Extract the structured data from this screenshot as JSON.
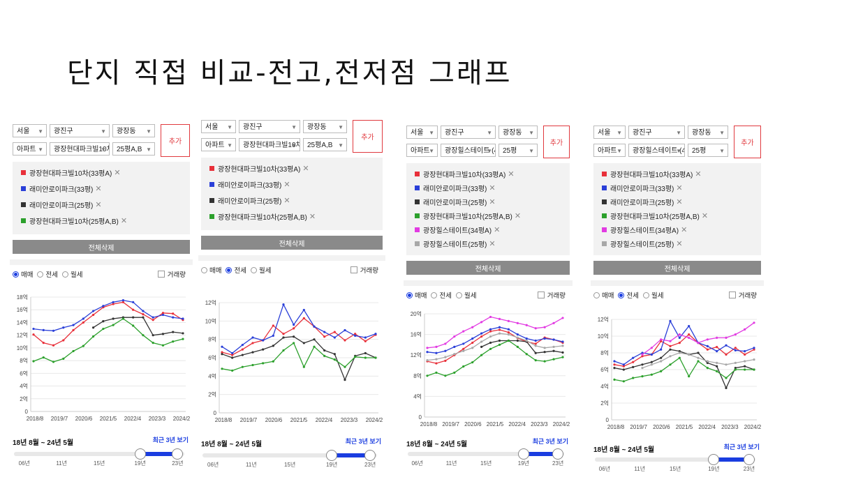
{
  "title": "단지 직접 비교-전고,전저점 그래프",
  "colors": {
    "red": "#e8303a",
    "blue": "#2a3fd8",
    "black": "#333333",
    "green": "#2ca02c",
    "magenta": "#e23be2",
    "gray": "#a8a8a8",
    "accent": "#1a3de0"
  },
  "panels": [
    {
      "selectors": {
        "city": "서울",
        "district": "광진구",
        "dong": "광장동",
        "type": "아파트",
        "complex": "광장현대파크빌10차",
        "size": "25평A,B"
      },
      "add_label": "추가",
      "items": [
        {
          "label": "광장현대파크빌10차(33평A)",
          "color": "red"
        },
        {
          "label": "래미안로이파크(33평)",
          "color": "blue"
        },
        {
          "label": "래미안로이파크(25평)",
          "color": "black"
        },
        {
          "label": "광장현대파크빌10차(25평A,B)",
          "color": "green"
        }
      ],
      "delete_all_label": "전체삭제",
      "radios": [
        {
          "label": "매매",
          "checked": true
        },
        {
          "label": "전세",
          "checked": false
        },
        {
          "label": "월세",
          "checked": false
        }
      ],
      "volume_label": "거래량",
      "range_text": "18년 8월 ~ 24년 5월",
      "recent_label": "최근 3년 보기",
      "slider_ticks": [
        "06년",
        "11년",
        "15년",
        "19년",
        "23년"
      ],
      "slider_range": {
        "from": "19년",
        "to": "23년"
      },
      "chart_data": {
        "type": "line",
        "x_ticks": [
          "2018/8",
          "2019/7",
          "2020/6",
          "2021/5",
          "2022/4",
          "2023/3",
          "2024/2"
        ],
        "y_ticks": [
          "0",
          "2억",
          "4억",
          "6억",
          "8억",
          "10억",
          "12억",
          "14억",
          "16억",
          "18억"
        ],
        "ylim": [
          0,
          18
        ],
        "series": [
          {
            "name": "광장현대파크빌10차(33평A)",
            "color": "red",
            "values": [
              12.1,
              10.8,
              10.4,
              11.2,
              12.8,
              14.0,
              15.2,
              16.4,
              16.9,
              17.2,
              16.0,
              15.3,
              14.4,
              15.5,
              15.4,
              14.4
            ]
          },
          {
            "name": "래미안로이파크(33평)",
            "color": "blue",
            "values": [
              13.0,
              12.8,
              12.7,
              13.2,
              13.6,
              14.6,
              15.8,
              16.6,
              17.2,
              17.5,
              17.2,
              15.8,
              14.8,
              15.2,
              14.8,
              14.6
            ]
          },
          {
            "name": "래미안로이파크(25평)",
            "color": "black",
            "values": [
              null,
              null,
              null,
              null,
              null,
              null,
              13.2,
              14.2,
              14.6,
              14.8,
              14.8,
              14.8,
              12.0,
              12.2,
              12.5,
              12.3
            ]
          },
          {
            "name": "광장현대파크빌10차(25평A,B)",
            "color": "green",
            "values": [
              7.9,
              8.5,
              7.8,
              8.3,
              9.5,
              10.3,
              11.8,
              13.0,
              13.6,
              14.6,
              13.5,
              12.0,
              10.8,
              10.4,
              11.0,
              11.4
            ]
          }
        ]
      }
    },
    {
      "selectors": {
        "city": "서울",
        "district": "광진구",
        "dong": "광장동",
        "type": "아파트",
        "complex": "광장현대파크빌10차",
        "size": "25평A,B"
      },
      "add_label": "추가",
      "items": [
        {
          "label": "광장현대파크빌10차(33평A)",
          "color": "red"
        },
        {
          "label": "래미안로이파크(33평)",
          "color": "blue"
        },
        {
          "label": "래미안로이파크(25평)",
          "color": "black"
        },
        {
          "label": "광장현대파크빌10차(25평A,B)",
          "color": "green"
        }
      ],
      "delete_all_label": "전체삭제",
      "radios": [
        {
          "label": "매매",
          "checked": false
        },
        {
          "label": "전세",
          "checked": true
        },
        {
          "label": "월세",
          "checked": false
        }
      ],
      "volume_label": "거래량",
      "range_text": "18년 8월 ~ 24년 5월",
      "recent_label": "최근 3년 보기",
      "slider_ticks": [
        "06년",
        "11년",
        "15년",
        "19년",
        "23년"
      ],
      "slider_range": {
        "from": "19년",
        "to": "23년"
      },
      "chart_data": {
        "type": "line",
        "x_ticks": [
          "2018/8",
          "2019/7",
          "2020/6",
          "2021/5",
          "2022/4",
          "2023/3",
          "2024/2"
        ],
        "y_ticks": [
          "0",
          "2억",
          "4억",
          "6억",
          "8억",
          "10억",
          "12억"
        ],
        "ylim": [
          0,
          12
        ],
        "series": [
          {
            "name": "광장현대파크빌10차(33평A)",
            "color": "red",
            "values": [
              6.6,
              6.3,
              6.9,
              7.6,
              7.9,
              9.5,
              8.6,
              9.2,
              10.3,
              9.4,
              8.3,
              8.8,
              7.9,
              8.6,
              7.8,
              8.5
            ]
          },
          {
            "name": "래미안로이파크(33평)",
            "color": "blue",
            "values": [
              7.2,
              6.5,
              7.4,
              8.2,
              7.9,
              8.4,
              11.8,
              9.6,
              11.2,
              9.4,
              8.8,
              8.2,
              9.0,
              8.4,
              8.2,
              8.6
            ]
          },
          {
            "name": "래미안로이파크(25평)",
            "color": "black",
            "values": [
              6.4,
              6.0,
              6.3,
              6.6,
              6.9,
              7.3,
              8.2,
              8.3,
              7.6,
              8.0,
              6.8,
              6.4,
              3.6,
              6.2,
              6.5,
              6.0
            ]
          },
          {
            "name": "광장현대파크빌10차(25평A,B)",
            "color": "green",
            "values": [
              4.8,
              4.6,
              5.0,
              5.2,
              5.4,
              5.6,
              6.8,
              7.6,
              5.0,
              7.2,
              6.2,
              5.8,
              5.0,
              6.1,
              6.0,
              6.0
            ]
          }
        ]
      }
    },
    {
      "selectors": {
        "city": "서울",
        "district": "광진구",
        "dong": "광장동",
        "type": "아파트",
        "complex": "광장힐스테이트 (45",
        "size": "25평"
      },
      "add_label": "추가",
      "items": [
        {
          "label": "광장현대파크빌10차(33평A)",
          "color": "red"
        },
        {
          "label": "래미안로이파크(33평)",
          "color": "blue"
        },
        {
          "label": "래미안로이파크(25평)",
          "color": "black"
        },
        {
          "label": "광장현대파크빌10차(25평A,B)",
          "color": "green"
        },
        {
          "label": "광장힐스테이트(34평A)",
          "color": "magenta"
        },
        {
          "label": "광장힐스테이트(25평)",
          "color": "gray"
        }
      ],
      "delete_all_label": "전체삭제",
      "radios": [
        {
          "label": "매매",
          "checked": true
        },
        {
          "label": "전세",
          "checked": false
        },
        {
          "label": "월세",
          "checked": false
        }
      ],
      "volume_label": "거래량",
      "range_text": "18년 8월 ~ 24년 5월",
      "recent_label": "최근 3년 보기",
      "slider_ticks": [
        "06년",
        "11년",
        "15년",
        "19년",
        "23년"
      ],
      "slider_range": {
        "from": "19년",
        "to": "23년"
      },
      "chart_data": {
        "type": "line",
        "x_ticks": [
          "2018/8",
          "2019/7",
          "2020/6",
          "2021/5",
          "2022/4",
          "2023/3",
          "2024/2"
        ],
        "y_ticks": [
          "0",
          "4억",
          "8억",
          "12억",
          "16억",
          "20억"
        ],
        "ylim": [
          0,
          20
        ],
        "series": [
          {
            "name": "광장현대파크빌10차(33평A)",
            "color": "red",
            "values": [
              10.8,
              10.4,
              10.9,
              12.0,
              13.2,
              14.4,
              15.6,
              16.6,
              16.9,
              16.4,
              15.3,
              14.6,
              14.2,
              15.4,
              15.0,
              14.4
            ]
          },
          {
            "name": "래미안로이파크(33평)",
            "color": "blue",
            "values": [
              12.6,
              12.4,
              12.8,
              13.6,
              14.2,
              15.2,
              16.2,
              17.0,
              17.4,
              17.0,
              16.0,
              15.2,
              14.8,
              15.2,
              15.0,
              14.6
            ]
          },
          {
            "name": "래미안로이파크(25평)",
            "color": "black",
            "values": [
              null,
              null,
              null,
              null,
              null,
              null,
              13.6,
              14.4,
              14.8,
              14.8,
              14.8,
              14.6,
              12.4,
              12.6,
              12.8,
              12.5
            ]
          },
          {
            "name": "광장현대파크빌10차(25평A,B)",
            "color": "green",
            "values": [
              8.0,
              8.6,
              8.0,
              8.6,
              9.8,
              10.6,
              12.0,
              13.2,
              14.0,
              14.8,
              13.6,
              12.2,
              11.0,
              10.8,
              11.2,
              11.6
            ]
          },
          {
            "name": "광장힐스테이트(34평A)",
            "color": "magenta",
            "values": [
              13.4,
              13.6,
              14.2,
              15.6,
              16.6,
              17.4,
              18.4,
              19.4,
              19.0,
              18.6,
              18.2,
              17.8,
              17.2,
              17.4,
              18.2,
              19.2
            ]
          },
          {
            "name": "광장힐스테이트(25평)",
            "color": "gray",
            "values": [
              11.0,
              11.2,
              11.6,
              12.2,
              12.8,
              13.4,
              14.6,
              15.6,
              16.2,
              16.0,
              15.4,
              14.8,
              13.8,
              13.4,
              13.6,
              13.8
            ]
          }
        ]
      }
    },
    {
      "selectors": {
        "city": "서울",
        "district": "광진구",
        "dong": "광장동",
        "type": "아파트",
        "complex": "광장힐스테이트 (45",
        "size": "25평"
      },
      "add_label": "추가",
      "items": [
        {
          "label": "광장현대파크빌10차(33평A)",
          "color": "red"
        },
        {
          "label": "래미안로이파크(33평)",
          "color": "blue"
        },
        {
          "label": "래미안로이파크(25평)",
          "color": "black"
        },
        {
          "label": "광장현대파크빌10차(25평A,B)",
          "color": "green"
        },
        {
          "label": "광장힐스테이트(34평A)",
          "color": "magenta"
        },
        {
          "label": "광장힐스테이트(25평)",
          "color": "gray"
        }
      ],
      "delete_all_label": "전체삭제",
      "radios": [
        {
          "label": "매매",
          "checked": false
        },
        {
          "label": "전세",
          "checked": true
        },
        {
          "label": "월세",
          "checked": false
        }
      ],
      "volume_label": "거래량",
      "range_text": "18년 8월 ~ 24년 5월",
      "recent_label": "최근 3년 보기",
      "slider_ticks": [
        "06년",
        "11년",
        "15년",
        "19년",
        "23년"
      ],
      "slider_range": {
        "from": "19년",
        "to": "23년"
      },
      "chart_data": {
        "type": "line",
        "x_ticks": [
          "2018/8",
          "2019/7",
          "2020/6",
          "2021/5",
          "2022/4",
          "2023/3",
          "2024/2"
        ],
        "y_ticks": [
          "0",
          "2억",
          "4억",
          "6억",
          "8억",
          "10억",
          "12억"
        ],
        "ylim": [
          0,
          12
        ],
        "series": [
          {
            "name": "광장현대파크빌10차(33평A)",
            "color": "red",
            "values": [
              6.6,
              6.4,
              6.9,
              7.6,
              7.8,
              9.4,
              8.8,
              9.2,
              10.2,
              9.2,
              8.4,
              8.7,
              7.8,
              8.6,
              7.8,
              8.4
            ]
          },
          {
            "name": "래미안로이파크(33평)",
            "color": "blue",
            "values": [
              7.0,
              6.6,
              7.4,
              8.0,
              7.8,
              8.4,
              11.8,
              9.8,
              11.2,
              9.2,
              8.8,
              8.2,
              8.9,
              8.3,
              8.2,
              8.6
            ]
          },
          {
            "name": "래미안로이파크(25평)",
            "color": "black",
            "values": [
              6.2,
              6.0,
              6.3,
              6.6,
              6.9,
              7.4,
              8.4,
              8.2,
              7.8,
              8.0,
              6.8,
              6.4,
              3.8,
              6.2,
              6.4,
              6.0
            ]
          },
          {
            "name": "광장현대파크빌10차(25평A,B)",
            "color": "green",
            "values": [
              4.8,
              4.6,
              5.0,
              5.2,
              5.4,
              5.8,
              6.6,
              7.4,
              5.2,
              7.0,
              6.2,
              5.8,
              5.0,
              6.0,
              6.0,
              6.0
            ]
          },
          {
            "name": "광장힐스테이트(34평A)",
            "color": "magenta",
            "values": [
              null,
              null,
              null,
              7.8,
              8.6,
              9.6,
              9.4,
              10.2,
              9.8,
              9.2,
              9.6,
              9.8,
              9.8,
              10.2,
              10.8,
              11.6
            ]
          },
          {
            "name": "광장힐스테이트(25평)",
            "color": "gray",
            "values": [
              null,
              null,
              null,
              6.2,
              6.6,
              7.0,
              7.6,
              8.0,
              7.8,
              7.4,
              7.0,
              6.8,
              6.6,
              6.8,
              7.0,
              7.2
            ]
          }
        ]
      }
    }
  ]
}
